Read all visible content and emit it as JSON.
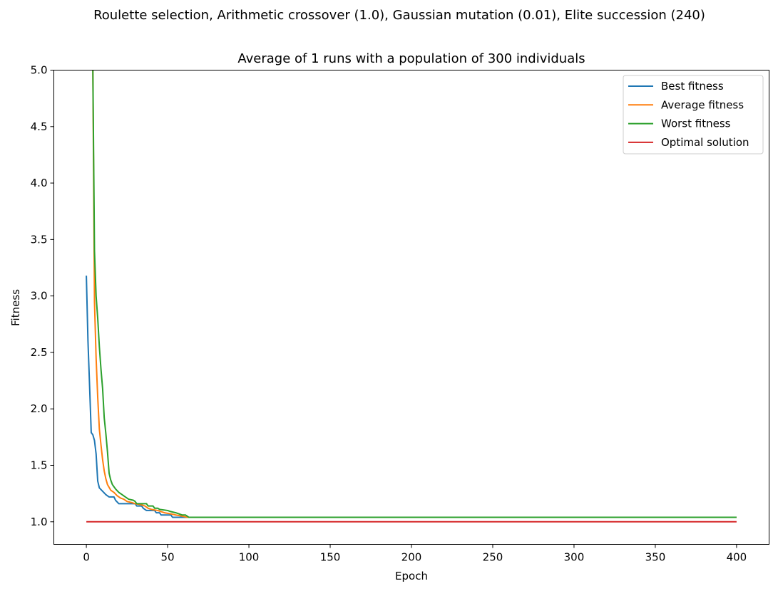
{
  "chart_data": {
    "type": "line",
    "suptitle": "Roulette selection, Arithmetic crossover (1.0), Gaussian mutation (0.01), Elite succession (240)",
    "title": "Average of 1 runs with a population of 300 individuals",
    "xlabel": "Epoch",
    "ylabel": "Fitness",
    "xlim": [
      -20,
      420
    ],
    "ylim": [
      0.8,
      5.0
    ],
    "xticks": [
      0,
      50,
      100,
      150,
      200,
      250,
      300,
      350,
      400
    ],
    "yticks": [
      1.0,
      1.5,
      2.0,
      2.5,
      3.0,
      3.5,
      4.0,
      4.5,
      5.0
    ],
    "xtick_labels": [
      "0",
      "50",
      "100",
      "150",
      "200",
      "250",
      "300",
      "350",
      "400"
    ],
    "ytick_labels": [
      "1.0",
      "1.5",
      "2.0",
      "2.5",
      "3.0",
      "3.5",
      "4.0",
      "4.5",
      "5.0"
    ],
    "grid": false,
    "legend_position": "top-right",
    "series": [
      {
        "name": "Best fitness",
        "color": "#1f77b4",
        "points": [
          [
            0,
            3.18
          ],
          [
            1,
            2.6
          ],
          [
            2,
            2.2
          ],
          [
            3,
            1.79
          ],
          [
            4,
            1.77
          ],
          [
            5,
            1.72
          ],
          [
            6,
            1.6
          ],
          [
            7,
            1.36
          ],
          [
            8,
            1.3
          ],
          [
            10,
            1.27
          ],
          [
            12,
            1.24
          ],
          [
            14,
            1.22
          ],
          [
            17,
            1.22
          ],
          [
            18,
            1.19
          ],
          [
            20,
            1.16
          ],
          [
            30,
            1.16
          ],
          [
            31,
            1.14
          ],
          [
            34,
            1.14
          ],
          [
            35,
            1.12
          ],
          [
            37,
            1.1
          ],
          [
            42,
            1.1
          ],
          [
            43,
            1.08
          ],
          [
            45,
            1.08
          ],
          [
            46,
            1.06
          ],
          [
            52,
            1.06
          ],
          [
            53,
            1.04
          ],
          [
            60,
            1.04
          ],
          [
            400,
            1.04
          ]
        ]
      },
      {
        "name": "Average fitness",
        "color": "#ff7f0e",
        "points": [
          [
            4,
            5.0
          ],
          [
            5,
            2.95
          ],
          [
            6,
            2.45
          ],
          [
            7,
            2.1
          ],
          [
            8,
            1.82
          ],
          [
            9,
            1.68
          ],
          [
            10,
            1.55
          ],
          [
            11,
            1.45
          ],
          [
            12,
            1.38
          ],
          [
            13,
            1.33
          ],
          [
            15,
            1.28
          ],
          [
            17,
            1.26
          ],
          [
            19,
            1.23
          ],
          [
            21,
            1.21
          ],
          [
            23,
            1.2
          ],
          [
            25,
            1.18
          ],
          [
            28,
            1.17
          ],
          [
            30,
            1.16
          ],
          [
            34,
            1.15
          ],
          [
            36,
            1.14
          ],
          [
            38,
            1.12
          ],
          [
            40,
            1.11
          ],
          [
            44,
            1.1
          ],
          [
            46,
            1.09
          ],
          [
            48,
            1.08
          ],
          [
            52,
            1.07
          ],
          [
            55,
            1.06
          ],
          [
            59,
            1.05
          ],
          [
            62,
            1.04
          ],
          [
            400,
            1.04
          ]
        ]
      },
      {
        "name": "Worst fitness",
        "color": "#2ca02c",
        "points": [
          [
            4,
            5.0
          ],
          [
            5,
            3.4
          ],
          [
            6,
            3.0
          ],
          [
            7,
            2.8
          ],
          [
            8,
            2.55
          ],
          [
            9,
            2.35
          ],
          [
            10,
            2.18
          ],
          [
            11,
            1.92
          ],
          [
            12,
            1.78
          ],
          [
            13,
            1.62
          ],
          [
            14,
            1.43
          ],
          [
            15,
            1.37
          ],
          [
            16,
            1.33
          ],
          [
            18,
            1.29
          ],
          [
            20,
            1.26
          ],
          [
            22,
            1.24
          ],
          [
            24,
            1.22
          ],
          [
            26,
            1.2
          ],
          [
            29,
            1.19
          ],
          [
            30,
            1.18
          ],
          [
            31,
            1.16
          ],
          [
            37,
            1.16
          ],
          [
            38,
            1.14
          ],
          [
            41,
            1.14
          ],
          [
            42,
            1.12
          ],
          [
            44,
            1.12
          ],
          [
            45,
            1.11
          ],
          [
            50,
            1.1
          ],
          [
            52,
            1.09
          ],
          [
            55,
            1.08
          ],
          [
            57,
            1.07
          ],
          [
            59,
            1.06
          ],
          [
            61,
            1.06
          ],
          [
            62,
            1.05
          ],
          [
            63,
            1.04
          ],
          [
            400,
            1.04
          ]
        ]
      },
      {
        "name": "Optimal solution",
        "color": "#d62728",
        "points": [
          [
            0,
            1.0
          ],
          [
            400,
            1.0
          ]
        ]
      }
    ]
  }
}
